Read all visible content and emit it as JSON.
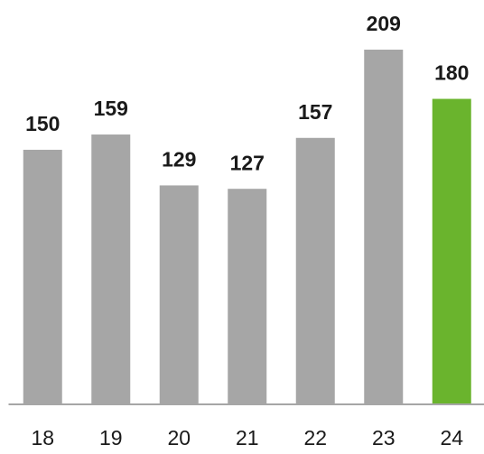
{
  "chart_data": {
    "type": "bar",
    "categories": [
      "18",
      "19",
      "20",
      "21",
      "22",
      "23",
      "24"
    ],
    "values": [
      150,
      159,
      129,
      127,
      157,
      209,
      180
    ],
    "colors": [
      "#a6a6a6",
      "#a6a6a6",
      "#a6a6a6",
      "#a6a6a6",
      "#a6a6a6",
      "#a6a6a6",
      "#6ab42d"
    ]
  }
}
